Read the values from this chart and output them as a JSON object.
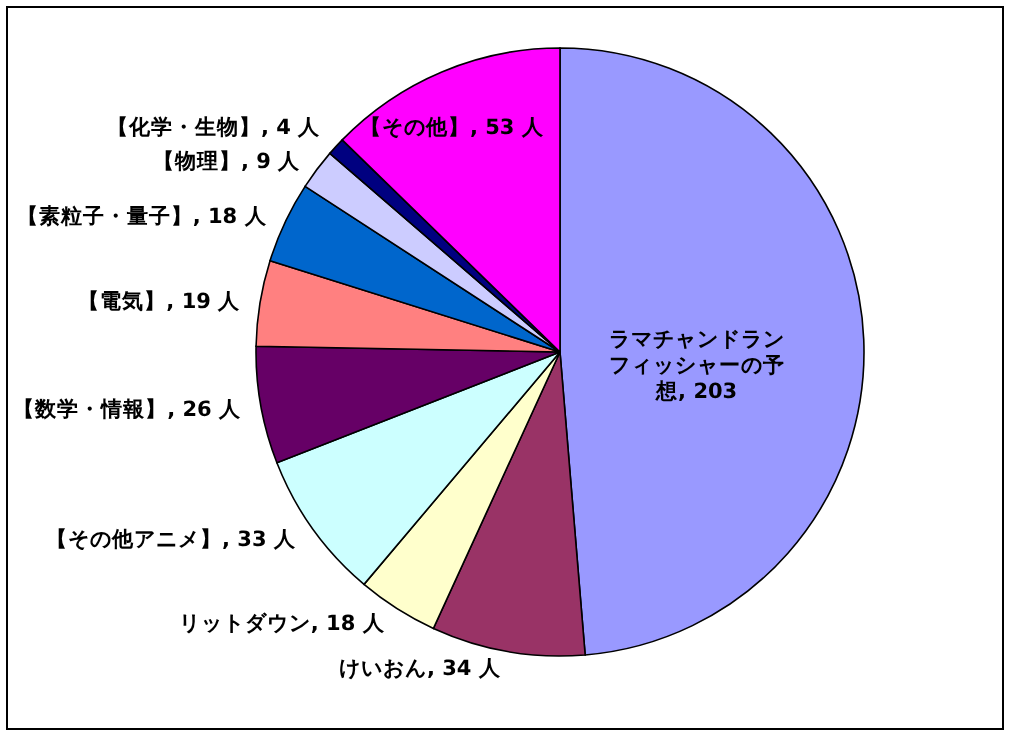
{
  "chart_data": {
    "type": "pie",
    "categories": [
      "ラマチャンドランフィッシャーの予想",
      "けいおん",
      "リットダウン",
      "【その他アニメ】",
      "【数学・情報】",
      "【電気】",
      "【素粒子・量子】",
      "【物理】",
      "【化学・生物】",
      "【その他】"
    ],
    "values": [
      203,
      34,
      18,
      33,
      26,
      19,
      18,
      9,
      4,
      53
    ],
    "value_labels": [
      "203",
      "34 人",
      "18 人",
      "33 人",
      "26 人",
      "19 人",
      "18 人",
      "9 人",
      "4 人",
      "53 人"
    ],
    "colors": [
      "#9999ff",
      "#993366",
      "#ffffcc",
      "#ccffff",
      "#660066",
      "#ff8080",
      "#0066cc",
      "#ccccff",
      "#000080",
      "#ff00ff"
    ]
  }
}
